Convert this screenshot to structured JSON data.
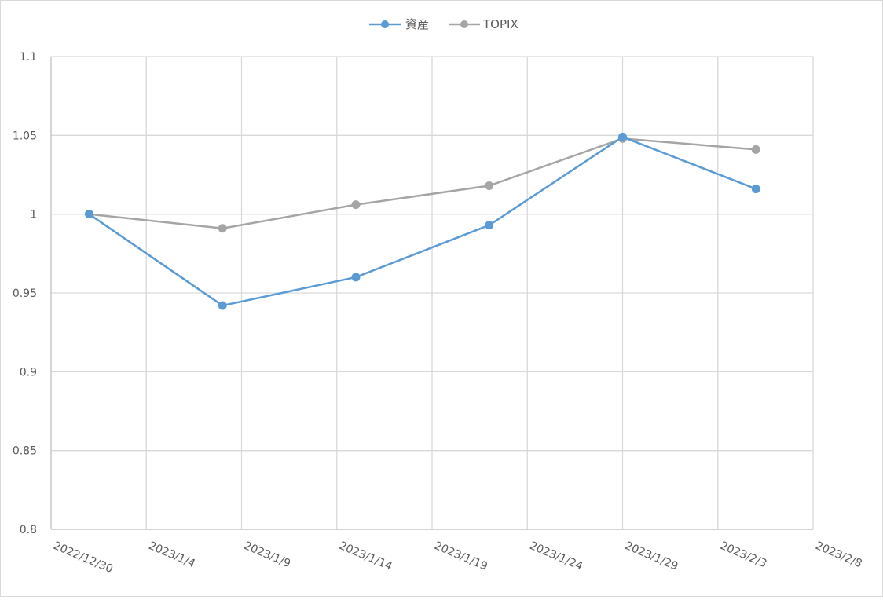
{
  "chart_data": {
    "type": "line",
    "title": "",
    "xlabel": "",
    "ylabel": "",
    "x_ticks": [
      "2022/12/30",
      "2023/1/4",
      "2023/1/9",
      "2023/1/14",
      "2023/1/19",
      "2023/1/24",
      "2023/1/29",
      "2023/2/3",
      "2023/2/8"
    ],
    "y_ticks": [
      "0.8",
      "0.85",
      "0.9",
      "0.95",
      "1",
      "1.05",
      "1.1"
    ],
    "ylim": [
      0.8,
      1.1
    ],
    "xlim": [
      "2022/12/30",
      "2023/2/8"
    ],
    "grid": true,
    "legend_position": "top-center",
    "x": [
      "2023/1/1",
      "2023/1/8",
      "2023/1/15",
      "2023/1/22",
      "2023/1/29",
      "2023/2/5"
    ],
    "series": [
      {
        "name": "資産",
        "color": "#5b9bd5",
        "values": [
          1.0,
          0.942,
          0.96,
          0.993,
          1.049,
          1.016
        ]
      },
      {
        "name": "TOPIX",
        "color": "#a5a5a5",
        "values": [
          1.0,
          0.991,
          1.006,
          1.018,
          1.048,
          1.041
        ]
      }
    ]
  }
}
